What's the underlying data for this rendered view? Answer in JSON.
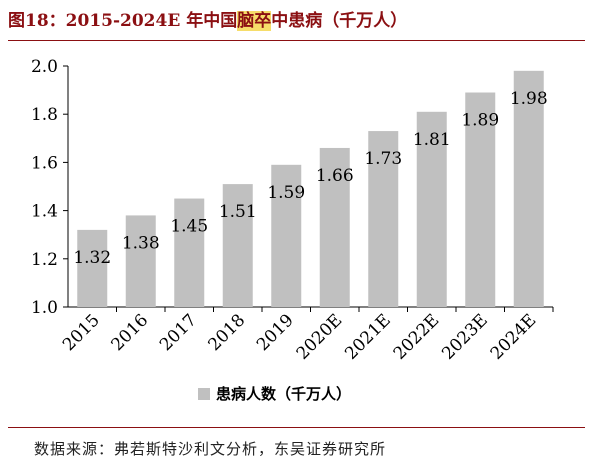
{
  "title": {
    "prefix": "图18：2015-2024E 年中国",
    "highlight": "脑卒",
    "suffix": "中患病（千万人）"
  },
  "source": "数据来源：弗若斯特沙利文分析，东吴证券研究所",
  "colors": {
    "bar": "#c0c0c0",
    "title": "#8b0f12",
    "highlight": "#f6dd6a",
    "axis": "#000000"
  },
  "chart_data": {
    "type": "bar",
    "categories": [
      "2015",
      "2016",
      "2017",
      "2018",
      "2019",
      "2020E",
      "2021E",
      "2022E",
      "2023E",
      "2024E"
    ],
    "series": [
      {
        "name": "患病人数（千万人）",
        "values": [
          1.32,
          1.38,
          1.45,
          1.51,
          1.59,
          1.66,
          1.73,
          1.81,
          1.89,
          1.98
        ]
      }
    ],
    "data_labels": [
      "1.32",
      "1.38",
      "1.45",
      "1.51",
      "1.59",
      "1.66",
      "1.73",
      "1.81",
      "1.89",
      "1.98"
    ],
    "ylim": [
      1.0,
      2.0
    ],
    "yticks": [
      "1.0",
      "1.2",
      "1.4",
      "1.6",
      "1.8",
      "2.0"
    ],
    "grid": false,
    "legend_position": "bottom",
    "xlabel": "",
    "ylabel": ""
  }
}
